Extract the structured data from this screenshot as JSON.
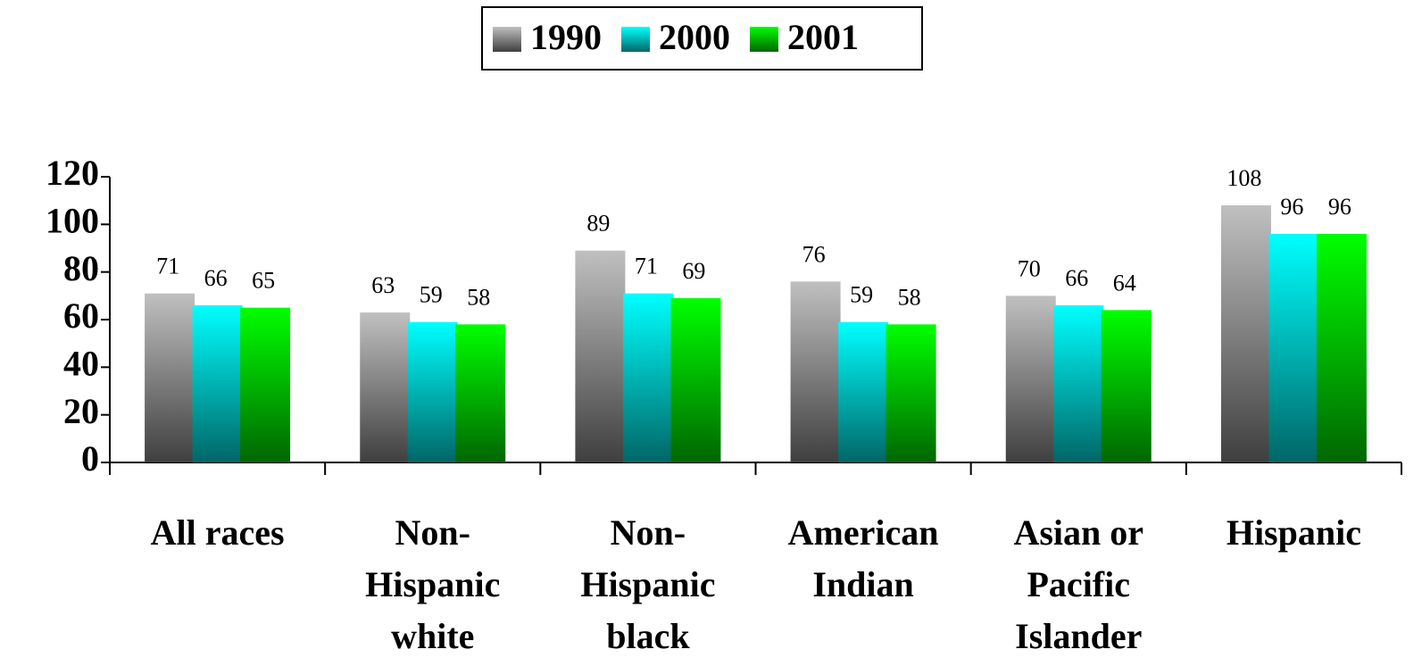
{
  "chart_data": {
    "type": "bar",
    "categories": [
      "All races",
      "Non-Hispanic white",
      "Non-Hispanic black",
      "American Indian",
      "Asian or Pacific Islander",
      "Hispanic"
    ],
    "series": [
      {
        "name": "1990",
        "color": "#c0c0c0",
        "values": [
          71,
          63,
          89,
          76,
          70,
          108
        ]
      },
      {
        "name": "2000",
        "color": "#00ffff",
        "values": [
          66,
          59,
          71,
          59,
          66,
          96
        ]
      },
      {
        "name": "2001",
        "color": "#00ff00",
        "values": [
          65,
          58,
          69,
          58,
          64,
          96
        ]
      }
    ],
    "ylim": [
      0,
      120
    ],
    "yticks": [
      0,
      20,
      40,
      60,
      80,
      100,
      120
    ],
    "legend": "top"
  }
}
